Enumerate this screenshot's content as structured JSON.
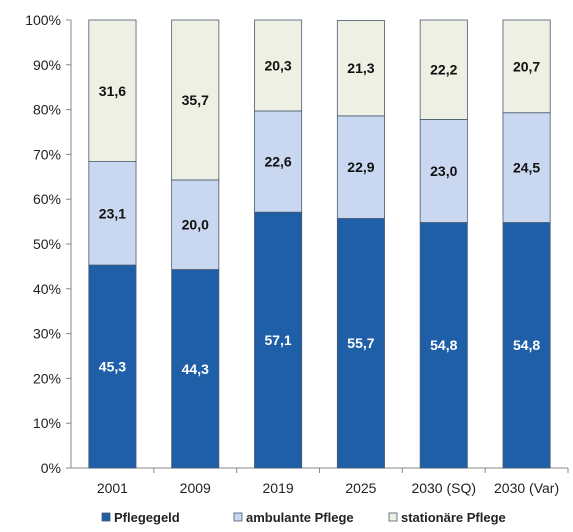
{
  "chart_data": {
    "type": "bar",
    "stacked": true,
    "percent_stacked": true,
    "categories": [
      "2001",
      "2009",
      "2019",
      "2025",
      "2030 (SQ)",
      "2030 (Var)"
    ],
    "series": [
      {
        "name": "Pflegegeld",
        "color": "#1f5fa8",
        "label_color": "#ffffff",
        "values": [
          45.3,
          44.3,
          57.1,
          55.7,
          54.8,
          54.8
        ],
        "labels": [
          "45,3",
          "44,3",
          "57,1",
          "55,7",
          "54,8",
          "54,8"
        ]
      },
      {
        "name": "ambulante Pflege",
        "color": "#c9d7f1",
        "label_color": "#111111",
        "values": [
          23.1,
          20.0,
          22.6,
          22.9,
          23.0,
          24.5
        ],
        "labels": [
          "23,1",
          "20,0",
          "22,6",
          "22,9",
          "23,0",
          "24,5"
        ]
      },
      {
        "name": "stationäre Pflege",
        "color": "#eef0e3",
        "label_color": "#111111",
        "values": [
          31.6,
          35.7,
          20.3,
          21.3,
          22.2,
          20.7
        ],
        "labels": [
          "31,6",
          "35,7",
          "20,3",
          "21,3",
          "22,2",
          "20,7"
        ]
      }
    ],
    "ylim": [
      0,
      100
    ],
    "yticks": [
      "0%",
      "10%",
      "20%",
      "30%",
      "40%",
      "50%",
      "60%",
      "70%",
      "80%",
      "90%",
      "100%"
    ],
    "grid": false,
    "legend_position": "bottom",
    "title": "",
    "xlabel": "",
    "ylabel": ""
  }
}
